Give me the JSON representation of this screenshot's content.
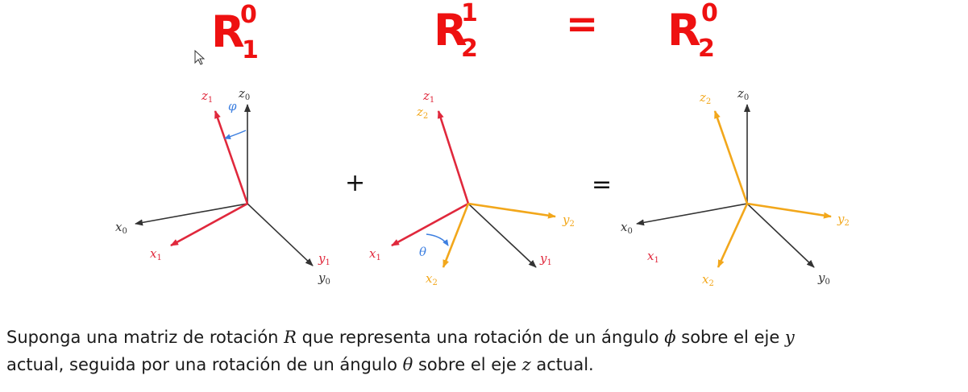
{
  "colors": {
    "red": "#e0283c",
    "orange": "#f2a71b",
    "gray": "#333333",
    "blue": "#3d7fe0",
    "ink_red": "#ee1111"
  },
  "handwriting": {
    "r10": {
      "base": "R",
      "sup": "0",
      "sub": "1"
    },
    "r21": {
      "base": "R",
      "sup": "1",
      "sub": "2"
    },
    "equals": "=",
    "r20": {
      "base": "R",
      "sup": "0",
      "sub": "2"
    }
  },
  "operators": {
    "plus": "+",
    "equals": "="
  },
  "panel1": {
    "z0": {
      "base": "z",
      "sub": "0"
    },
    "z1": {
      "base": "z",
      "sub": "1"
    },
    "x0": {
      "base": "x",
      "sub": "0"
    },
    "x1": {
      "base": "x",
      "sub": "1"
    },
    "y1": {
      "base": "y",
      "sub": "1"
    },
    "y0": {
      "base": "y",
      "sub": "0"
    },
    "phi": "φ"
  },
  "panel2": {
    "z1": {
      "base": "z",
      "sub": "1"
    },
    "z2": {
      "base": "z",
      "sub": "2"
    },
    "x1": {
      "base": "x",
      "sub": "1"
    },
    "x2": {
      "base": "x",
      "sub": "2"
    },
    "y2": {
      "base": "y",
      "sub": "2"
    },
    "y1": {
      "base": "y",
      "sub": "1"
    },
    "theta": "θ"
  },
  "panel3": {
    "z2": {
      "base": "z",
      "sub": "2"
    },
    "z0": {
      "base": "z",
      "sub": "0"
    },
    "x0": {
      "base": "x",
      "sub": "0"
    },
    "x1": {
      "base": "x",
      "sub": "1"
    },
    "x2": {
      "base": "x",
      "sub": "2"
    },
    "y2": {
      "base": "y",
      "sub": "2"
    },
    "y0": {
      "base": "y",
      "sub": "0"
    }
  },
  "caption": {
    "p1": "Suponga una matriz de rotación ",
    "R": "R",
    "p2": " que representa una rotación de un ángulo ",
    "phi": "ϕ",
    "p3": " sobre el eje ",
    "y": "y",
    "p4": "actual, seguida por una rotación de un ángulo ",
    "theta": "θ",
    "p5": " sobre el eje ",
    "z": "z",
    "p6": " actual."
  }
}
